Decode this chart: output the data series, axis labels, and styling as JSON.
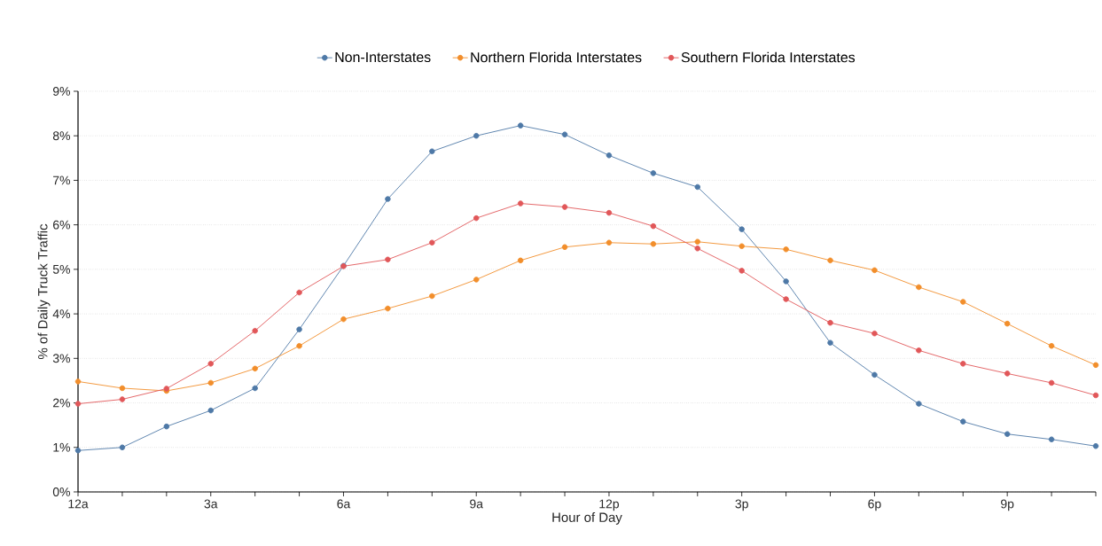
{
  "chart_data": {
    "type": "line",
    "xlabel": "Hour of Day",
    "ylabel": "% of Daily Truck Traffic",
    "categories": [
      "12a",
      null,
      null,
      "3a",
      null,
      null,
      "6a",
      null,
      null,
      "9a",
      null,
      null,
      "12p",
      null,
      null,
      "3p",
      null,
      null,
      "6p",
      null,
      null,
      "9p",
      null,
      null
    ],
    "series": [
      {
        "name": "Non-Interstates",
        "color": "#4e79a7",
        "values": [
          0.93,
          1.0,
          1.47,
          1.83,
          2.33,
          3.65,
          5.08,
          6.58,
          7.65,
          8.0,
          8.23,
          8.03,
          7.56,
          7.16,
          6.85,
          5.9,
          4.73,
          3.35,
          2.63,
          1.98,
          1.58,
          1.3,
          1.18,
          1.03
        ]
      },
      {
        "name": "Northern Florida Interstates",
        "color": "#f28e2b",
        "values": [
          2.48,
          2.33,
          2.27,
          2.45,
          2.77,
          3.28,
          3.88,
          4.12,
          4.4,
          4.77,
          5.2,
          5.5,
          5.6,
          5.57,
          5.62,
          5.52,
          5.45,
          5.2,
          4.98,
          4.6,
          4.27,
          3.78,
          3.28,
          2.85
        ]
      },
      {
        "name": "Southern Florida Interstates",
        "color": "#e15759",
        "values": [
          1.98,
          2.08,
          2.32,
          2.88,
          3.62,
          4.48,
          5.07,
          5.22,
          5.6,
          6.15,
          6.48,
          6.4,
          6.27,
          5.97,
          5.47,
          4.97,
          4.33,
          3.8,
          3.56,
          3.18,
          2.88,
          2.66,
          2.45,
          2.17
        ]
      }
    ],
    "ylim": [
      0,
      9
    ],
    "yticks": [
      {
        "value": 0,
        "label": "0%"
      },
      {
        "value": 1,
        "label": "1%"
      },
      {
        "value": 2,
        "label": "2%"
      },
      {
        "value": 3,
        "label": "3%"
      },
      {
        "value": 4,
        "label": "4%"
      },
      {
        "value": 5,
        "label": "5%"
      },
      {
        "value": 6,
        "label": "6%"
      },
      {
        "value": 7,
        "label": "7%"
      },
      {
        "value": 8,
        "label": "8%"
      },
      {
        "value": 9,
        "label": "9%"
      }
    ],
    "grid": "y",
    "legend": "top",
    "marker": "circle",
    "line_style": "solid"
  }
}
